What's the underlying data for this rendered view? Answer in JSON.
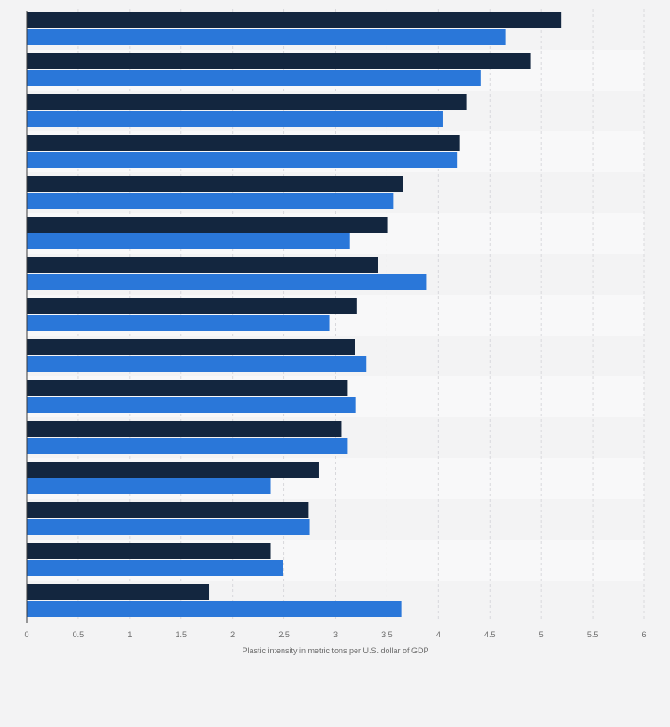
{
  "chart_data": {
    "type": "bar",
    "orientation": "horizontal",
    "xlabel": "Plastic intensity in metric tons per U.S. dollar of GDP",
    "xlim": [
      0,
      6
    ],
    "xticks": [
      "0",
      "0.5",
      "1",
      "1.5",
      "2",
      "2.5",
      "3",
      "3.5",
      "4",
      "4.5",
      "5",
      "5.5",
      "6"
    ],
    "grid": true,
    "legend": "none",
    "categories": [
      "",
      "",
      "",
      "",
      "",
      "",
      "",
      "",
      "",
      "",
      "",
      "",
      "",
      "",
      ""
    ],
    "series": [
      {
        "color": "#13263f",
        "values": [
          5.19,
          4.9,
          4.27,
          4.21,
          3.66,
          3.51,
          3.41,
          3.21,
          3.19,
          3.12,
          3.06,
          2.84,
          2.74,
          2.37,
          1.77
        ]
      },
      {
        "color": "#2a77d9",
        "values": [
          4.65,
          4.41,
          4.04,
          4.18,
          3.56,
          3.14,
          3.88,
          2.94,
          3.3,
          3.2,
          3.12,
          2.37,
          2.75,
          2.49,
          3.64
        ]
      }
    ]
  },
  "colors": {
    "background": "#f3f3f4",
    "band_light": "#f8f8f9",
    "band_dark": "#f3f3f4",
    "grid": "#d8d8dc",
    "axis": "#3a3a3a",
    "tick_text": "#6b6b6b"
  }
}
